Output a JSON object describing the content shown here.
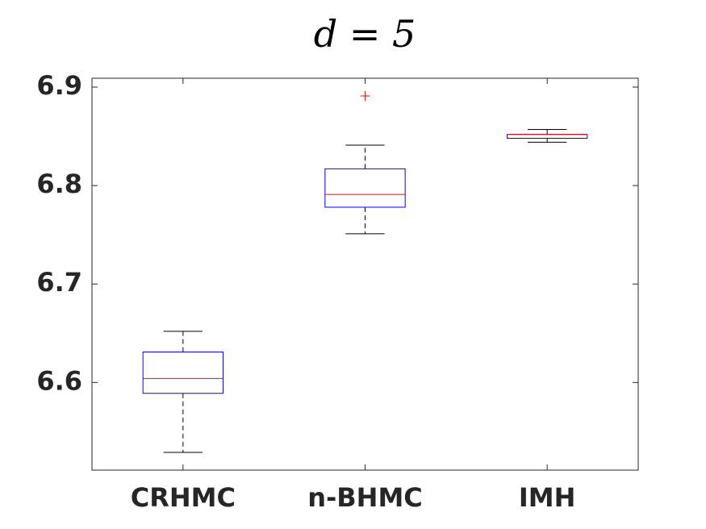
{
  "chart_data": {
    "type": "box",
    "title": "d = 5",
    "categories": [
      "CRHMC",
      "n-BHMC",
      "IMH"
    ],
    "boxes": [
      {
        "min": 6.529,
        "q1": 6.589,
        "median": 6.604,
        "q3": 6.631,
        "max": 6.652
      },
      {
        "min": 6.751,
        "q1": 6.778,
        "median": 6.791,
        "q3": 6.817,
        "max": 6.841,
        "outliers": [
          6.891
        ]
      },
      {
        "min": 6.844,
        "q1": 6.848,
        "median": 6.852,
        "q3": 6.852,
        "max": 6.857
      }
    ],
    "box_color": "#0000ff",
    "median_color": "#ff0000",
    "whisker_color": "#000000",
    "outlier_color": "#ff0000",
    "ylim": [
      6.511,
      6.909
    ],
    "yticks": [
      6.6,
      6.7,
      6.8,
      6.9
    ],
    "grid": false
  }
}
